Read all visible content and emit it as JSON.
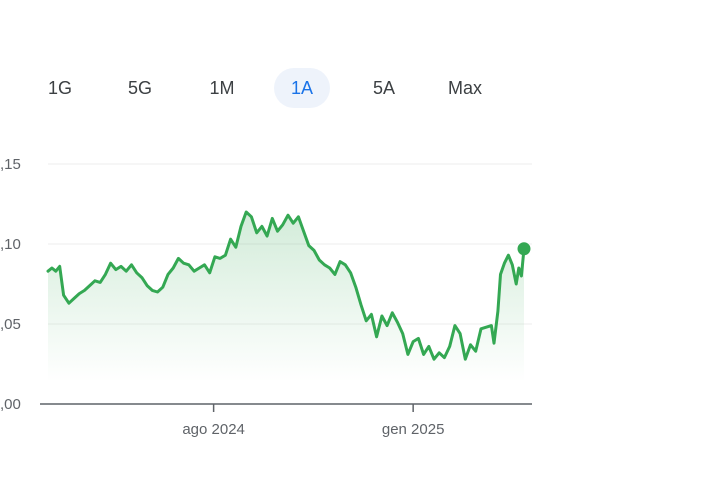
{
  "range_tabs": [
    {
      "label": "1G",
      "active": false
    },
    {
      "label": "5G",
      "active": false
    },
    {
      "label": "1M",
      "active": false
    },
    {
      "label": "1A",
      "active": true
    },
    {
      "label": "5A",
      "active": false
    },
    {
      "label": "Max",
      "active": false
    }
  ],
  "colors": {
    "line": "#34a853",
    "tab_active_text": "#1a73e8",
    "tab_active_bg": "#eef3fb",
    "axis": "#5f6368",
    "grid": "#eeeeee"
  },
  "chart_data": {
    "type": "area",
    "title": "",
    "xlabel": "",
    "ylabel": "",
    "ylim": [
      0.0,
      0.15
    ],
    "yticks": [
      ",00",
      ",05",
      ",10",
      ",15"
    ],
    "ytick_values": [
      0.0,
      0.05,
      0.1,
      0.15
    ],
    "xticks": [
      {
        "label": "ago 2024",
        "x": "2024-08-01"
      },
      {
        "label": "gen 2025",
        "x": "2025-01-01"
      }
    ],
    "xlim": [
      "2024-03-27",
      "2025-03-27"
    ],
    "grid": true,
    "series": [
      {
        "name": "",
        "color": "#34a853",
        "points": [
          [
            "2024-03-27",
            0.083
          ],
          [
            "2024-03-30",
            0.085
          ],
          [
            "2024-04-02",
            0.083
          ],
          [
            "2024-04-05",
            0.086
          ],
          [
            "2024-04-08",
            0.068
          ],
          [
            "2024-04-12",
            0.063
          ],
          [
            "2024-04-16",
            0.066
          ],
          [
            "2024-04-20",
            0.069
          ],
          [
            "2024-04-24",
            0.071
          ],
          [
            "2024-04-28",
            0.074
          ],
          [
            "2024-05-02",
            0.077
          ],
          [
            "2024-05-06",
            0.076
          ],
          [
            "2024-05-10",
            0.081
          ],
          [
            "2024-05-14",
            0.088
          ],
          [
            "2024-05-18",
            0.084
          ],
          [
            "2024-05-22",
            0.086
          ],
          [
            "2024-05-26",
            0.083
          ],
          [
            "2024-05-30",
            0.087
          ],
          [
            "2024-06-03",
            0.082
          ],
          [
            "2024-06-07",
            0.079
          ],
          [
            "2024-06-11",
            0.074
          ],
          [
            "2024-06-15",
            0.071
          ],
          [
            "2024-06-19",
            0.07
          ],
          [
            "2024-06-23",
            0.073
          ],
          [
            "2024-06-27",
            0.081
          ],
          [
            "2024-07-01",
            0.085
          ],
          [
            "2024-07-05",
            0.091
          ],
          [
            "2024-07-09",
            0.088
          ],
          [
            "2024-07-13",
            0.087
          ],
          [
            "2024-07-17",
            0.083
          ],
          [
            "2024-07-21",
            0.085
          ],
          [
            "2024-07-25",
            0.087
          ],
          [
            "2024-07-29",
            0.082
          ],
          [
            "2024-08-02",
            0.092
          ],
          [
            "2024-08-06",
            0.091
          ],
          [
            "2024-08-10",
            0.093
          ],
          [
            "2024-08-14",
            0.103
          ],
          [
            "2024-08-18",
            0.098
          ],
          [
            "2024-08-22",
            0.111
          ],
          [
            "2024-08-26",
            0.12
          ],
          [
            "2024-08-30",
            0.117
          ],
          [
            "2024-09-03",
            0.107
          ],
          [
            "2024-09-07",
            0.111
          ],
          [
            "2024-09-11",
            0.105
          ],
          [
            "2024-09-15",
            0.116
          ],
          [
            "2024-09-19",
            0.108
          ],
          [
            "2024-09-23",
            0.112
          ],
          [
            "2024-09-27",
            0.118
          ],
          [
            "2024-10-01",
            0.113
          ],
          [
            "2024-10-05",
            0.117
          ],
          [
            "2024-10-09",
            0.108
          ],
          [
            "2024-10-13",
            0.099
          ],
          [
            "2024-10-17",
            0.096
          ],
          [
            "2024-10-21",
            0.09
          ],
          [
            "2024-10-25",
            0.087
          ],
          [
            "2024-10-29",
            0.085
          ],
          [
            "2024-11-02",
            0.081
          ],
          [
            "2024-11-06",
            0.089
          ],
          [
            "2024-11-10",
            0.087
          ],
          [
            "2024-11-14",
            0.082
          ],
          [
            "2024-11-18",
            0.073
          ],
          [
            "2024-11-22",
            0.062
          ],
          [
            "2024-11-26",
            0.052
          ],
          [
            "2024-11-30",
            0.056
          ],
          [
            "2024-12-04",
            0.042
          ],
          [
            "2024-12-08",
            0.055
          ],
          [
            "2024-12-12",
            0.049
          ],
          [
            "2024-12-16",
            0.057
          ],
          [
            "2024-12-20",
            0.051
          ],
          [
            "2024-12-24",
            0.044
          ],
          [
            "2024-12-28",
            0.031
          ],
          [
            "2025-01-01",
            0.039
          ],
          [
            "2025-01-05",
            0.041
          ],
          [
            "2025-01-09",
            0.031
          ],
          [
            "2025-01-13",
            0.036
          ],
          [
            "2025-01-17",
            0.028
          ],
          [
            "2025-01-21",
            0.032
          ],
          [
            "2025-01-25",
            0.029
          ],
          [
            "2025-01-29",
            0.036
          ],
          [
            "2025-02-02",
            0.049
          ],
          [
            "2025-02-06",
            0.044
          ],
          [
            "2025-02-10",
            0.028
          ],
          [
            "2025-02-14",
            0.037
          ],
          [
            "2025-02-18",
            0.033
          ],
          [
            "2025-02-22",
            0.047
          ],
          [
            "2025-02-26",
            0.048
          ],
          [
            "2025-03-02",
            0.049
          ],
          [
            "2025-03-04",
            0.038
          ],
          [
            "2025-03-07",
            0.058
          ],
          [
            "2025-03-09",
            0.081
          ],
          [
            "2025-03-12",
            0.088
          ],
          [
            "2025-03-15",
            0.093
          ],
          [
            "2025-03-18",
            0.087
          ],
          [
            "2025-03-21",
            0.075
          ],
          [
            "2025-03-23",
            0.085
          ],
          [
            "2025-03-25",
            0.08
          ],
          [
            "2025-03-27",
            0.097
          ]
        ]
      }
    ]
  }
}
